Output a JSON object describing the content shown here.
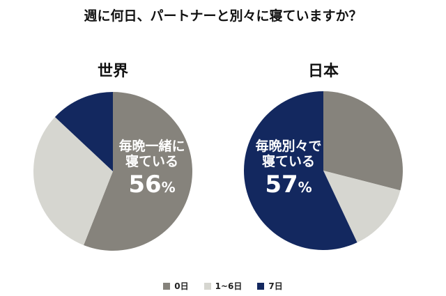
{
  "chart_data": [
    {
      "type": "pie",
      "title": "世界",
      "categories": [
        "0日",
        "1~6日",
        "7日"
      ],
      "values": [
        56,
        31,
        13
      ],
      "colors": [
        "#86837c",
        "#d6d6d0",
        "#13285f"
      ],
      "annotation": {
        "line1": "毎晩一緒に",
        "line2": "寝ている",
        "value": "56",
        "unit": "%"
      }
    },
    {
      "type": "pie",
      "title": "日本",
      "categories": [
        "0日",
        "1~6日",
        "7日"
      ],
      "values": [
        29,
        14,
        57
      ],
      "colors": [
        "#86837c",
        "#d6d6d0",
        "#13285f"
      ],
      "annotation": {
        "line1": "毎晩別々で",
        "line2": "寝ている",
        "value": "57",
        "unit": "%"
      }
    }
  ],
  "title": "週に何日、パートナーと別々に寝ていますか？",
  "legend": {
    "placement": "bottom",
    "items": [
      {
        "label": "0日",
        "color": "#86837c"
      },
      {
        "label": "1~6日",
        "color": "#d6d6d0"
      },
      {
        "label": "7日",
        "color": "#13285f"
      }
    ]
  }
}
